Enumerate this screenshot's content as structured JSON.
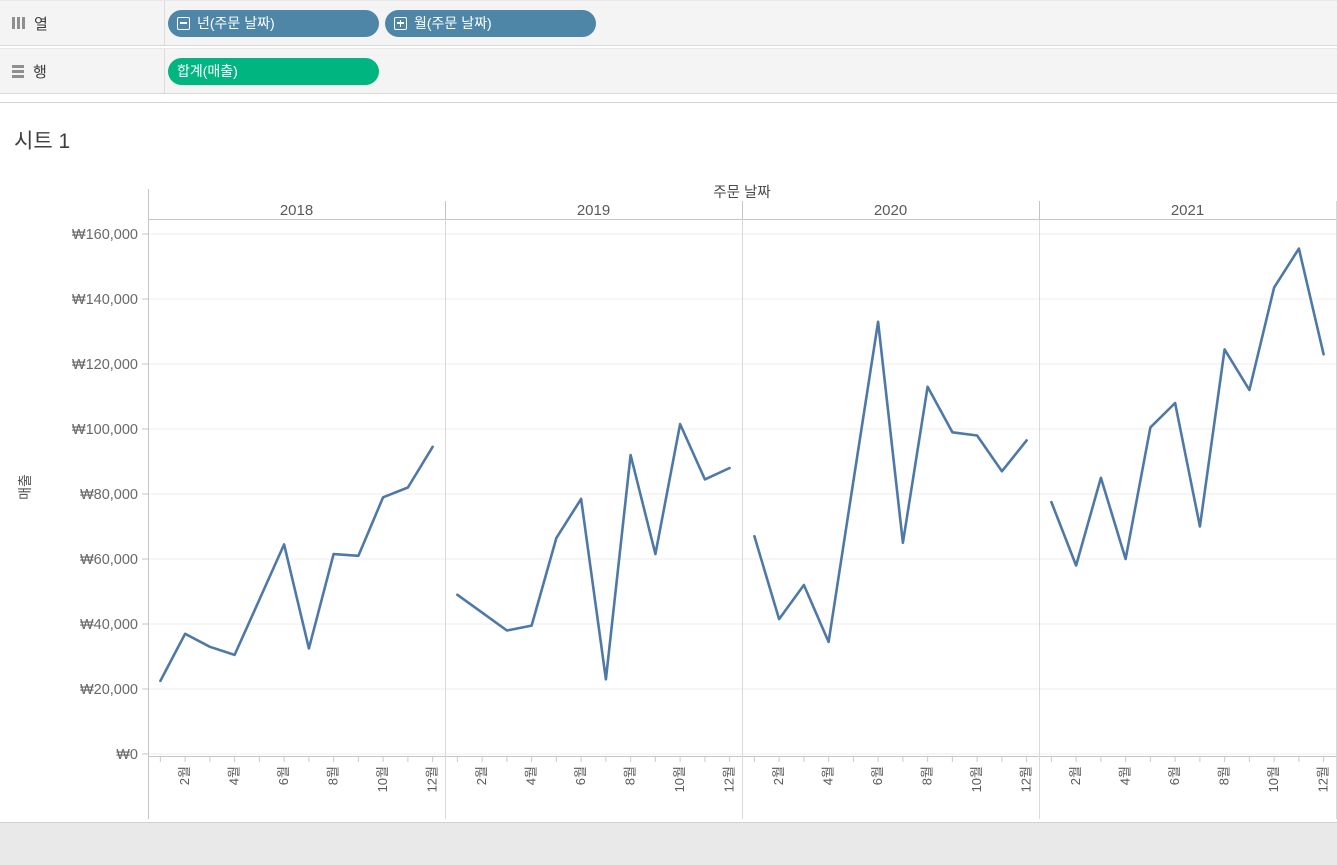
{
  "shelves": {
    "columns": {
      "label": "열",
      "pills": [
        {
          "label": "년(주문 날짜)",
          "icon": "collapse-minus",
          "kind": "dimension"
        },
        {
          "label": "월(주문 날짜)",
          "icon": "expand-plus",
          "kind": "dimension"
        }
      ]
    },
    "rows": {
      "label": "행",
      "pills": [
        {
          "label": "합계(매출)",
          "icon": "none",
          "kind": "measure"
        }
      ]
    }
  },
  "sheet_title": "시트 1",
  "chart_data": {
    "type": "line",
    "title": "주문 날짜",
    "facet_field_label": "주문 날짜",
    "facets": [
      "2018",
      "2019",
      "2020",
      "2021"
    ],
    "x_months": [
      1,
      2,
      3,
      4,
      5,
      6,
      7,
      8,
      9,
      10,
      11,
      12
    ],
    "x_tick_labels": [
      "2월",
      "4월",
      "6월",
      "8월",
      "10월",
      "12월"
    ],
    "labeled_months": [
      2,
      4,
      6,
      8,
      10,
      12
    ],
    "series": [
      {
        "name": "2018",
        "values": [
          22500,
          37000,
          33000,
          30500,
          47500,
          64500,
          32500,
          61500,
          61000,
          79000,
          82000,
          94500
        ]
      },
      {
        "name": "2019",
        "values": [
          49000,
          43500,
          38000,
          39500,
          66500,
          78500,
          23000,
          92000,
          61500,
          101500,
          84500,
          88000
        ]
      },
      {
        "name": "2020",
        "values": [
          67000,
          41500,
          52000,
          34500,
          84000,
          133000,
          65000,
          113000,
          99000,
          98000,
          87000,
          96500
        ]
      },
      {
        "name": "2021",
        "values": [
          77500,
          58000,
          85000,
          60000,
          100500,
          108000,
          70000,
          124500,
          112000,
          143500,
          155500,
          123000
        ]
      }
    ],
    "ylabel": "매출",
    "ylim": [
      0,
      160000
    ],
    "y_tick_values": [
      0,
      20000,
      40000,
      60000,
      80000,
      100000,
      120000,
      140000,
      160000
    ],
    "y_tick_labels": [
      "₩0",
      "₩20,000",
      "₩40,000",
      "₩60,000",
      "₩80,000",
      "₩100,000",
      "₩120,000",
      "₩140,000",
      "₩160,000"
    ],
    "grid": "horizontal",
    "legend": "none",
    "line_color": "#4e79a7"
  },
  "colors": {
    "dimension_pill": "#4e86a8",
    "measure_pill": "#00b57f",
    "line": "#4e79a7",
    "gridline": "#ececec",
    "pane_border": "#d9d9d9",
    "axis_border": "#c4c4c4",
    "shelf_bg": "#f4f4f4",
    "status_bar_bg": "#e9e9e9"
  }
}
